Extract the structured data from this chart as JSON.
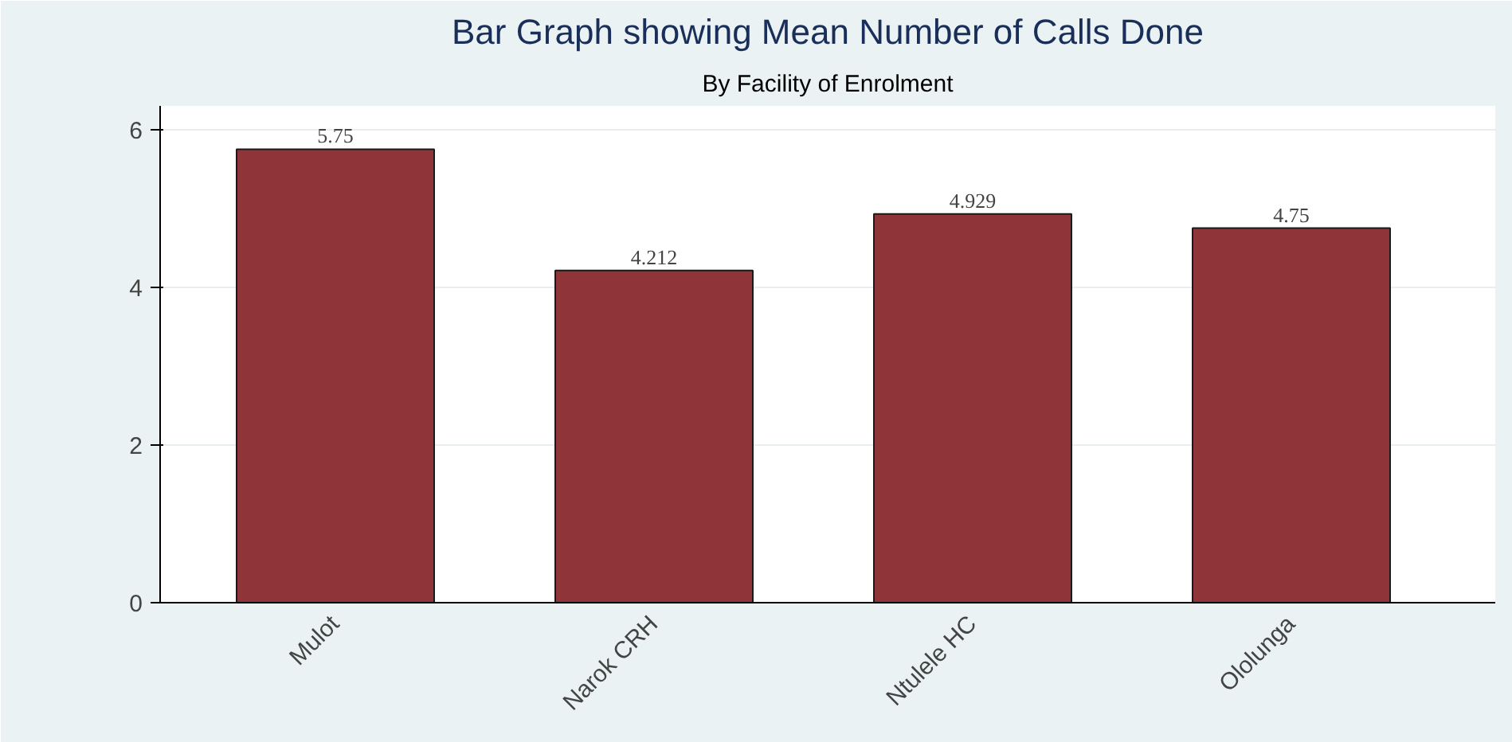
{
  "chart_data": {
    "type": "bar",
    "title": "Bar Graph showing Mean Number of Calls Done",
    "subtitle": "By Facility of Enrolment",
    "categories": [
      "Mulot",
      "Narok CRH",
      "Ntulele HC",
      "Ololunga"
    ],
    "values": [
      5.75,
      4.212,
      4.929,
      4.75
    ],
    "color": "#8f3539",
    "data_labels": true,
    "ylim": [
      0,
      6.3
    ],
    "yticks": [
      0,
      2,
      4,
      6
    ],
    "grid": "y"
  }
}
